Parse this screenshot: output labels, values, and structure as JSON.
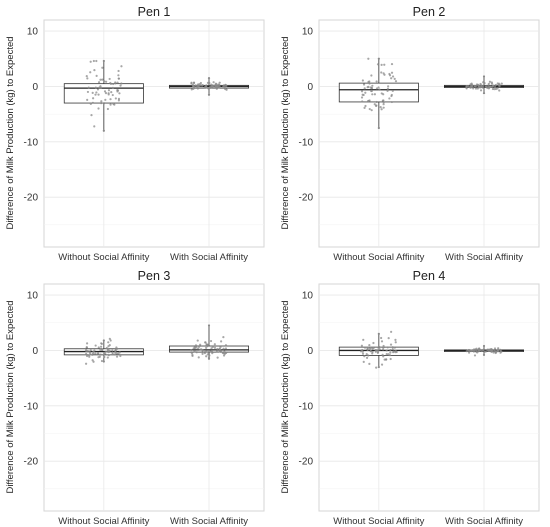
{
  "chart_data": [
    {
      "type": "box",
      "title": "Pen 1",
      "ylabel": "Difference of Milk Production (kg) to Expected",
      "categories": [
        "Without Social Affinity",
        "With Social Affinity"
      ],
      "ylim": [
        -29,
        12
      ],
      "yticks": [
        10,
        0,
        -10,
        -20
      ],
      "grid": true,
      "boxes": [
        {
          "category": "Without Social Affinity",
          "min": -8,
          "q1": -3,
          "median": -0.3,
          "q3": 0.5,
          "max": 4.6
        },
        {
          "category": "With Social Affinity",
          "min": -1.5,
          "q1": -0.3,
          "median": 0,
          "q3": 0.2,
          "max": 1.5
        }
      ]
    },
    {
      "type": "box",
      "title": "Pen 2",
      "ylabel": "Difference of Milk Production (kg) to Expected",
      "categories": [
        "Without Social Affinity",
        "With Social Affinity"
      ],
      "ylim": [
        -29,
        12
      ],
      "yticks": [
        10,
        0,
        -10,
        -20
      ],
      "grid": true,
      "boxes": [
        {
          "category": "Without Social Affinity",
          "min": -7.5,
          "q1": -2.8,
          "median": -0.6,
          "q3": 0.6,
          "max": 5
        },
        {
          "category": "With Social Affinity",
          "min": -1.2,
          "q1": -0.2,
          "median": 0,
          "q3": 0.2,
          "max": 1.8
        }
      ]
    },
    {
      "type": "box",
      "title": "Pen 3",
      "ylabel": "Difference of Milk Production (kg) to Expected",
      "categories": [
        "Without Social Affinity",
        "With Social Affinity"
      ],
      "ylim": [
        -29,
        12
      ],
      "yticks": [
        10,
        0,
        -10,
        -20
      ],
      "grid": true,
      "boxes": [
        {
          "category": "Without Social Affinity",
          "min": -2,
          "q1": -0.8,
          "median": -0.2,
          "q3": 0.3,
          "max": 1.8
        },
        {
          "category": "With Social Affinity",
          "min": -1.5,
          "q1": -0.3,
          "median": 0.1,
          "q3": 0.8,
          "max": 4.5
        }
      ]
    },
    {
      "type": "box",
      "title": "Pen 4",
      "ylabel": "Difference of Milk Production (kg) to Expected",
      "categories": [
        "Without Social Affinity",
        "With Social Affinity"
      ],
      "ylim": [
        -29,
        12
      ],
      "yticks": [
        10,
        0,
        -10,
        -20
      ],
      "grid": true,
      "boxes": [
        {
          "category": "Without Social Affinity",
          "min": -3,
          "q1": -0.9,
          "median": 0,
          "q3": 0.6,
          "max": 3
        },
        {
          "category": "With Social Affinity",
          "min": -0.8,
          "q1": -0.2,
          "median": 0,
          "q3": 0.1,
          "max": 0.8
        }
      ]
    }
  ]
}
